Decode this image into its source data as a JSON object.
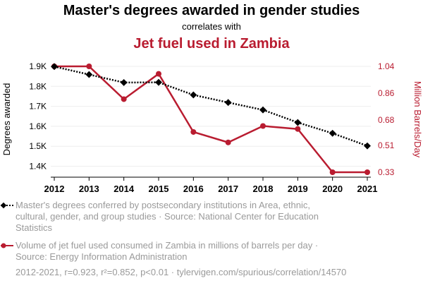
{
  "chart_data": {
    "type": "line",
    "title": "Master's degrees awarded in gender studies",
    "subtitle": "correlates with",
    "title2": "Jet fuel used in Zambia",
    "x": [
      2012,
      2013,
      2014,
      2015,
      2016,
      2017,
      2018,
      2019,
      2020,
      2021
    ],
    "x_tick_labels": [
      "2012",
      "2013",
      "2014",
      "2015",
      "2016",
      "2017",
      "2018",
      "2019",
      "2020",
      "2021"
    ],
    "ylabel_left": "Degrees awarded",
    "ylabel_right": "Million Barrels/Day",
    "ylim_left": [
      1370,
      1900
    ],
    "ylim_right": [
      0.33,
      1.04
    ],
    "y_ticks_left": [
      1400,
      1500,
      1600,
      1700,
      1800,
      1900
    ],
    "y_tick_labels_left": [
      "1.4K",
      "1.5K",
      "1.6K",
      "1.7K",
      "1.8K",
      "1.9K"
    ],
    "y_ticks_right": [
      0.33,
      0.51,
      0.68,
      0.86,
      1.04
    ],
    "y_tick_labels_right": [
      "0.33",
      "0.51",
      "0.68",
      "0.86",
      "1.04"
    ],
    "grid": true,
    "series": [
      {
        "name": "Master's degrees conferred by postsecondary institutions in Area, ethnic, cultural, gender, and group studies · Source: National Center for Education Statistics",
        "axis": "left",
        "color": "#000000",
        "style": "dotted",
        "marker": "diamond",
        "values": [
          1899,
          1859,
          1819,
          1820,
          1757,
          1719,
          1682,
          1619,
          1565,
          1502
        ]
      },
      {
        "name": "Volume of jet fuel used consumed in Zambia in millions of barrels per day · Source: Energy Information Administration",
        "axis": "right",
        "color": "#b91c30",
        "style": "solid",
        "marker": "circle",
        "values": [
          1.04,
          1.04,
          0.82,
          0.99,
          0.6,
          0.53,
          0.64,
          0.62,
          0.33,
          0.33
        ]
      }
    ]
  },
  "legend": {
    "series1_line1": "Master's degrees conferred by postsecondary institutions in Area, ethnic,",
    "series1_line2": "cultural, gender, and group studies · Source: National Center for Education",
    "series1_line3": "Statistics",
    "series2_line1": "Volume of jet fuel used consumed in Zambia in millions of barrels per day ·",
    "series2_line2": "Source: Energy Information Administration"
  },
  "footer": "2012-2021, r=0.923, r²=0.852, p<0.01 · tylervigen.com/spurious/correlation/14570",
  "colors": {
    "red": "#b91c30",
    "black": "#000000",
    "grid": "#eeeeee",
    "muted": "#9a9a9a"
  }
}
